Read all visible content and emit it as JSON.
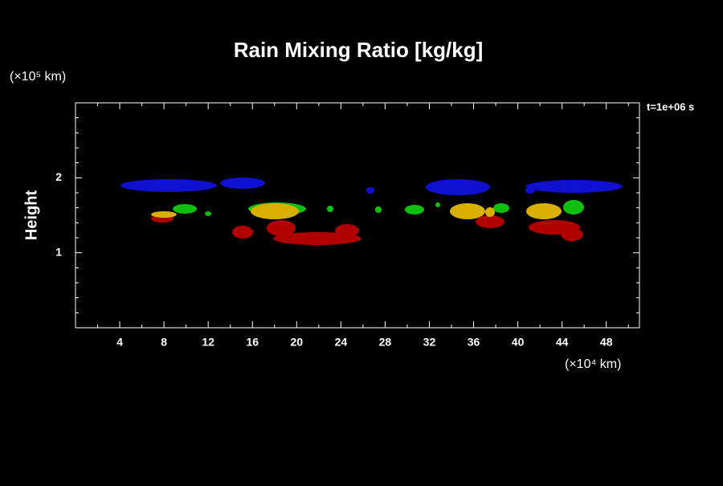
{
  "chart_data": {
    "type": "contour",
    "title": "Rain Mixing Ratio [kg/kg]",
    "y_label": "Height",
    "y_units": "(×10⁵ km)",
    "x_units": "(×10⁴ km)",
    "annotation": "t=1e+06 s",
    "xlim": [
      0,
      51
    ],
    "ylim": [
      0,
      3
    ],
    "xticks": [
      4,
      8,
      12,
      16,
      20,
      24,
      28,
      32,
      36,
      40,
      44,
      48
    ],
    "xminorticks": [
      2,
      6,
      10,
      14,
      18,
      22,
      26,
      30,
      34,
      38,
      42,
      46,
      50
    ],
    "yticks": [
      1,
      2
    ],
    "yminorticks": [
      0.2,
      0.4,
      0.6,
      0.8,
      1.2,
      1.4,
      1.6,
      1.8,
      2.2,
      2.4,
      2.6,
      2.8
    ]
  }
}
